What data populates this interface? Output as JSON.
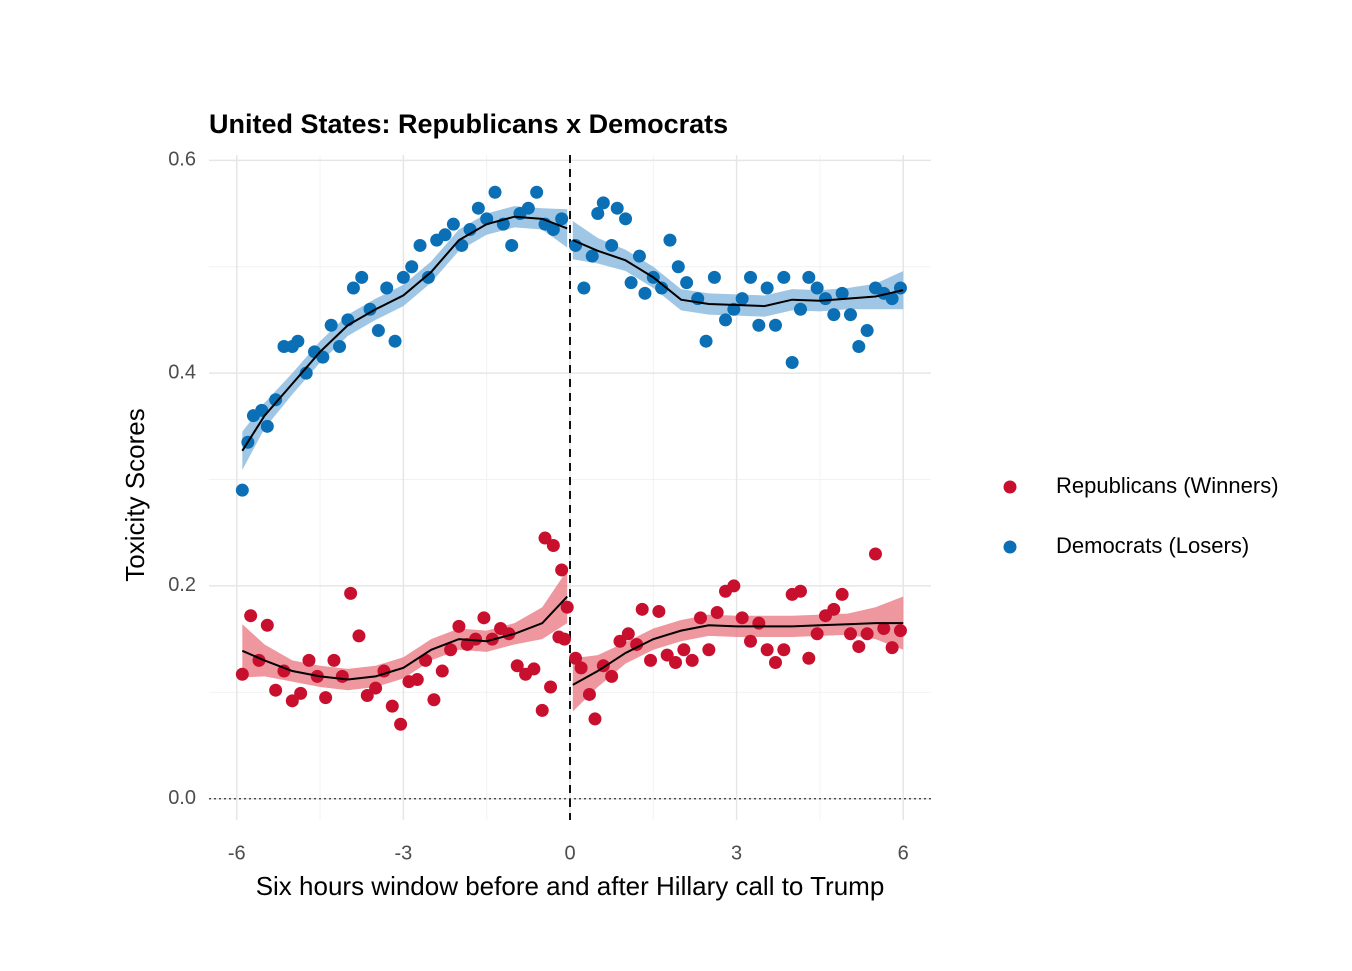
{
  "chart_data": {
    "type": "scatter",
    "title": "United States: Republicans x Democrats",
    "xlabel": "Six hours window before and after Hillary call to Trump",
    "ylabel": "Toxicity Scores",
    "xlim": [
      -6.5,
      6.5
    ],
    "ylim": [
      -0.02,
      0.605
    ],
    "xticks": [
      -6,
      -3,
      0,
      3,
      6
    ],
    "yticks": [
      {
        "value": 0,
        "label": "0.0"
      },
      0.2,
      0.4,
      0.6
    ],
    "x_minor_grid": [
      -4.5,
      -1.5,
      1.5,
      4.5
    ],
    "y_minor_grid": [
      0.1,
      0.3,
      0.5
    ],
    "grid": true,
    "vline": 0,
    "hline": 0,
    "legend": "right",
    "line_color": "#000000",
    "series": [
      {
        "name": "Republicans (Winners)",
        "color": "#c8102e",
        "ribbon_color": "#e8747f",
        "x": [
          -5.9,
          -5.75,
          -5.6,
          -5.45,
          -5.3,
          -5.15,
          -5.0,
          -4.85,
          -4.7,
          -4.55,
          -4.4,
          -4.25,
          -4.1,
          -3.95,
          -3.8,
          -3.65,
          -3.5,
          -3.35,
          -3.2,
          -3.05,
          -2.9,
          -2.75,
          -2.6,
          -2.45,
          -2.3,
          -2.15,
          -2.0,
          -1.85,
          -1.7,
          -1.55,
          -1.4,
          -1.25,
          -1.1,
          -0.95,
          -0.8,
          -0.65,
          -0.5,
          -0.35,
          -0.2,
          -0.1,
          -0.45,
          -0.3,
          -0.15,
          -0.05,
          0.1,
          0.2,
          0.35,
          0.45,
          0.6,
          0.75,
          0.9,
          1.05,
          1.2,
          1.3,
          1.45,
          1.6,
          1.75,
          1.9,
          2.05,
          2.2,
          2.35,
          2.5,
          2.65,
          2.8,
          2.95,
          3.1,
          3.25,
          3.4,
          3.55,
          3.7,
          3.85,
          4.0,
          4.15,
          4.3,
          4.45,
          4.6,
          4.75,
          4.9,
          5.05,
          5.2,
          5.35,
          5.5,
          5.65,
          5.8,
          5.95
        ],
        "values": [
          0.117,
          0.172,
          0.13,
          0.163,
          0.102,
          0.12,
          0.092,
          0.099,
          0.13,
          0.115,
          0.095,
          0.13,
          0.115,
          0.193,
          0.153,
          0.097,
          0.104,
          0.12,
          0.087,
          0.07,
          0.11,
          0.112,
          0.13,
          0.093,
          0.12,
          0.14,
          0.162,
          0.145,
          0.15,
          0.17,
          0.15,
          0.16,
          0.155,
          0.125,
          0.117,
          0.122,
          0.083,
          0.105,
          0.152,
          0.15,
          0.245,
          0.238,
          0.215,
          0.18,
          0.132,
          0.123,
          0.098,
          0.075,
          0.125,
          0.115,
          0.148,
          0.155,
          0.145,
          0.178,
          0.13,
          0.176,
          0.135,
          0.128,
          0.14,
          0.13,
          0.17,
          0.14,
          0.175,
          0.195,
          0.2,
          0.17,
          0.148,
          0.165,
          0.14,
          0.128,
          0.14,
          0.192,
          0.195,
          0.132,
          0.155,
          0.172,
          0.178,
          0.192,
          0.155,
          0.143,
          0.155,
          0.23,
          0.16,
          0.142,
          0.158
        ],
        "fit": {
          "x": [
            -5.9,
            -5.5,
            -5,
            -4.5,
            -4,
            -3.5,
            -3,
            -2.5,
            -2,
            -1.5,
            -1,
            -0.5,
            -0.05,
            null,
            0.05,
            0.5,
            1,
            1.5,
            2,
            2.5,
            3,
            3.5,
            4,
            4.5,
            5,
            5.5,
            6
          ],
          "y": [
            0.139,
            0.13,
            0.12,
            0.115,
            0.112,
            0.115,
            0.123,
            0.14,
            0.15,
            0.148,
            0.155,
            0.165,
            0.19,
            null,
            0.107,
            0.12,
            0.137,
            0.15,
            0.158,
            0.163,
            0.162,
            0.162,
            0.162,
            0.163,
            0.164,
            0.165,
            0.165
          ],
          "lower": [
            0.114,
            0.115,
            0.11,
            0.105,
            0.102,
            0.105,
            0.113,
            0.13,
            0.14,
            0.138,
            0.145,
            0.15,
            0.165,
            null,
            0.082,
            0.105,
            0.127,
            0.14,
            0.148,
            0.153,
            0.152,
            0.152,
            0.152,
            0.153,
            0.154,
            0.15,
            0.14
          ],
          "upper": [
            0.164,
            0.145,
            0.13,
            0.125,
            0.122,
            0.125,
            0.133,
            0.15,
            0.16,
            0.158,
            0.165,
            0.18,
            0.215,
            null,
            0.132,
            0.135,
            0.147,
            0.16,
            0.168,
            0.173,
            0.172,
            0.172,
            0.172,
            0.173,
            0.174,
            0.18,
            0.19
          ]
        }
      },
      {
        "name": "Democrats (Losers)",
        "color": "#0a6fb5",
        "ribbon_color": "#7fb4dc",
        "x": [
          -5.9,
          -5.8,
          -5.7,
          -5.55,
          -5.45,
          -5.3,
          -5.15,
          -5,
          -4.9,
          -4.75,
          -4.6,
          -4.45,
          -4.3,
          -4.15,
          -4.0,
          -3.9,
          -3.75,
          -3.6,
          -3.45,
          -3.3,
          -3.15,
          -3.0,
          -2.85,
          -2.7,
          -2.55,
          -2.4,
          -2.25,
          -2.1,
          -1.95,
          -1.8,
          -1.65,
          -1.5,
          -1.35,
          -1.2,
          -1.05,
          -0.9,
          -0.75,
          -0.6,
          -0.45,
          -0.3,
          -0.15,
          0.1,
          0.25,
          0.4,
          0.5,
          0.6,
          0.75,
          0.85,
          1.0,
          1.1,
          1.25,
          1.35,
          1.5,
          1.65,
          1.8,
          1.95,
          2.1,
          2.3,
          2.45,
          2.6,
          2.8,
          2.95,
          3.1,
          3.25,
          3.4,
          3.55,
          3.7,
          3.85,
          4.0,
          4.15,
          4.3,
          4.45,
          4.6,
          4.75,
          4.9,
          5.05,
          5.2,
          5.35,
          5.5,
          5.65,
          5.8,
          5.95
        ],
        "values": [
          0.29,
          0.335,
          0.36,
          0.365,
          0.35,
          0.375,
          0.425,
          0.425,
          0.43,
          0.4,
          0.42,
          0.415,
          0.445,
          0.425,
          0.45,
          0.48,
          0.49,
          0.46,
          0.44,
          0.48,
          0.43,
          0.49,
          0.5,
          0.52,
          0.49,
          0.525,
          0.53,
          0.54,
          0.52,
          0.535,
          0.555,
          0.545,
          0.57,
          0.54,
          0.52,
          0.55,
          0.555,
          0.57,
          0.54,
          0.535,
          0.545,
          0.52,
          0.48,
          0.51,
          0.55,
          0.56,
          0.52,
          0.555,
          0.545,
          0.485,
          0.51,
          0.475,
          0.49,
          0.48,
          0.525,
          0.5,
          0.485,
          0.47,
          0.43,
          0.49,
          0.45,
          0.46,
          0.47,
          0.49,
          0.445,
          0.48,
          0.445,
          0.49,
          0.41,
          0.46,
          0.49,
          0.48,
          0.47,
          0.455,
          0.475,
          0.455,
          0.425,
          0.44,
          0.48,
          0.475,
          0.47,
          0.48
        ],
        "fit": {
          "x": [
            -5.9,
            -5.5,
            -5,
            -4.5,
            -4,
            -3.5,
            -3,
            -2.5,
            -2,
            -1.5,
            -1,
            -0.5,
            -0.05,
            null,
            0.05,
            0.5,
            1,
            1.5,
            2,
            2.5,
            3,
            3.5,
            4,
            4.5,
            5,
            5.5,
            6
          ],
          "y": [
            0.327,
            0.36,
            0.39,
            0.42,
            0.445,
            0.46,
            0.473,
            0.495,
            0.525,
            0.54,
            0.547,
            0.545,
            0.536,
            null,
            0.525,
            0.515,
            0.506,
            0.49,
            0.469,
            0.465,
            0.464,
            0.463,
            0.469,
            0.468,
            0.47,
            0.472,
            0.478
          ],
          "lower": [
            0.309,
            0.348,
            0.38,
            0.41,
            0.435,
            0.45,
            0.463,
            0.485,
            0.515,
            0.53,
            0.537,
            0.535,
            0.518,
            null,
            0.507,
            0.503,
            0.496,
            0.48,
            0.459,
            0.455,
            0.454,
            0.453,
            0.459,
            0.458,
            0.46,
            0.46,
            0.46
          ],
          "upper": [
            0.345,
            0.372,
            0.4,
            0.43,
            0.455,
            0.47,
            0.483,
            0.505,
            0.535,
            0.55,
            0.557,
            0.555,
            0.554,
            null,
            0.543,
            0.527,
            0.516,
            0.5,
            0.479,
            0.475,
            0.474,
            0.473,
            0.479,
            0.478,
            0.48,
            0.484,
            0.496
          ]
        }
      }
    ]
  }
}
